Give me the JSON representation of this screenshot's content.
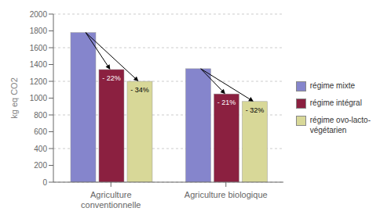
{
  "chart_data": {
    "type": "bar",
    "categories": [
      "Agriculture\nconventionnelle",
      "Agriculture biologique"
    ],
    "series": [
      {
        "name": "régime mixte",
        "color": "#8585CC",
        "values": [
          1780,
          1350
        ]
      },
      {
        "name": "régime intégral",
        "color": "#8B2040",
        "values": [
          1340,
          1050
        ]
      },
      {
        "name": "régime ovo-lacto-\nvégétarien",
        "color": "#D8D898",
        "values": [
          1200,
          960
        ]
      }
    ],
    "ylabel": "kg eq CO2",
    "ylim": [
      0,
      2000
    ],
    "yticks": [
      0,
      200,
      400,
      600,
      800,
      1000,
      1200,
      1400,
      1600,
      1800,
      2000
    ],
    "grid": true,
    "legend": "right",
    "annotations": [
      [
        "- 22%",
        "- 34%"
      ],
      [
        "- 21%",
        "- 32%"
      ]
    ]
  }
}
